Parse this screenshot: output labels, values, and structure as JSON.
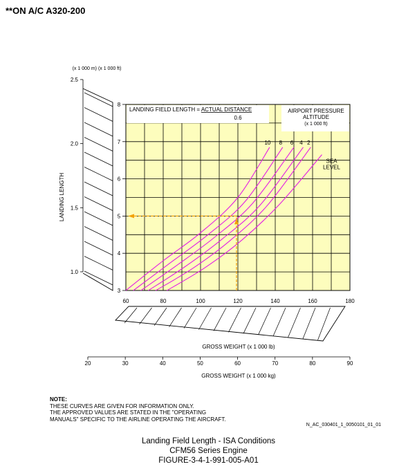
{
  "header": "**ON A/C A320-200",
  "colors": {
    "plot_bg": "#fdfdbd",
    "curve": "#e21ee4",
    "guide": "#f2a20b",
    "grid": "#000000"
  },
  "chart_data": {
    "type": "line",
    "chart_title": "LANDING FIELD LENGTH = ACTUAL DISTANCE",
    "chart_title_prefix": "LANDING FIELD LENGTH = ",
    "chart_title_underlined": "ACTUAL DISTANCE",
    "title_divisor": "0.6",
    "legend_title_lines": [
      "AIRPORT PRESSURE",
      "ALTITUDE",
      "(x 1 000 ft)"
    ],
    "ylabel": "LANDING LENGTH",
    "y_units": "(x 1 000 m)  (x 1 000 ft)",
    "xlabel_lb": "GROSS WEIGHT (x 1 000 lb)",
    "xlabel_kg": "GROSS WEIGHT (x 1 000 kg)",
    "x_ticks_lb": [
      "60",
      "80",
      "100",
      "120",
      "140",
      "160",
      "180"
    ],
    "x_ticks_kg": [
      "20",
      "30",
      "40",
      "50",
      "60",
      "70",
      "80",
      "90"
    ],
    "y_ticks_ft": [
      "3",
      "4",
      "5",
      "6",
      "7",
      "8"
    ],
    "y_ticks_m": [
      "1.0",
      "1.5",
      "2.0",
      "2.5"
    ],
    "xlim_lb": [
      60,
      180
    ],
    "ylim_ft": [
      3,
      8
    ],
    "grid": true,
    "series": [
      {
        "name": "10",
        "points": [
          [
            60,
            3.0
          ],
          [
            80,
            3.8
          ],
          [
            100,
            4.55
          ],
          [
            120,
            5.5
          ],
          [
            137,
            6.85
          ]
        ]
      },
      {
        "name": "8",
        "points": [
          [
            64,
            3.0
          ],
          [
            84,
            3.75
          ],
          [
            104,
            4.5
          ],
          [
            124,
            5.4
          ],
          [
            144,
            6.85
          ]
        ]
      },
      {
        "name": "6",
        "points": [
          [
            68,
            3.0
          ],
          [
            88,
            3.7
          ],
          [
            108,
            4.45
          ],
          [
            128,
            5.35
          ],
          [
            150,
            6.85
          ]
        ]
      },
      {
        "name": "4",
        "points": [
          [
            72,
            3.0
          ],
          [
            92,
            3.65
          ],
          [
            112,
            4.4
          ],
          [
            132,
            5.3
          ],
          [
            155,
            6.85
          ]
        ]
      },
      {
        "name": "2",
        "points": [
          [
            76,
            3.0
          ],
          [
            96,
            3.6
          ],
          [
            116,
            4.35
          ],
          [
            136,
            5.3
          ],
          [
            159,
            6.85
          ]
        ]
      },
      {
        "name": "SEA LEVEL",
        "label_lines": [
          "SEA",
          "LEVEL"
        ],
        "points": [
          [
            82,
            3.0
          ],
          [
            102,
            3.6
          ],
          [
            122,
            4.35
          ],
          [
            142,
            5.3
          ],
          [
            165,
            6.65
          ]
        ]
      }
    ],
    "example": {
      "weight_lb": 120,
      "landing_length_ft": 5.0
    }
  },
  "note": {
    "label": "NOTE:",
    "lines": [
      "THESE CURVES ARE GIVEN FOR INFORMATION ONLY.",
      "THE APPROVED VALUES ARE STATED IN THE \"OPERATING",
      "MANUALS\" SPECIFIC TO THE AIRLINE OPERATING THE AIRCRAFT."
    ]
  },
  "reference_code": "N_AC_030401_1_0050101_01_01",
  "caption": {
    "line1": "Landing Field Length - ISA Conditions",
    "line2": "CFM56 Series Engine",
    "line3": "FIGURE-3-4-1-991-005-A01"
  }
}
